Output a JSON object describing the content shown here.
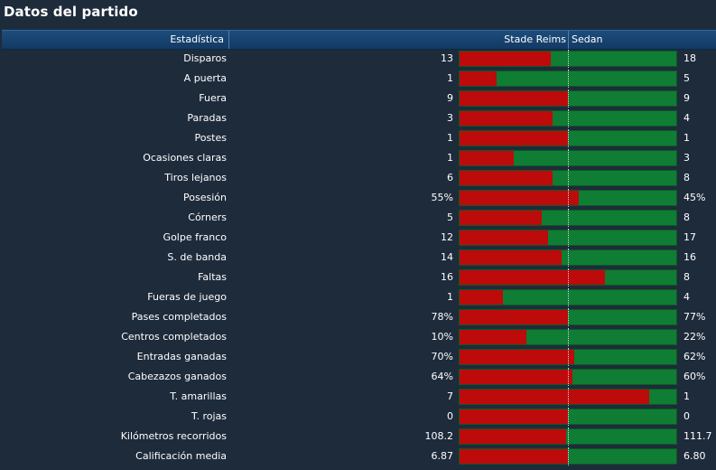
{
  "title": "Datos del partido",
  "header": {
    "stat_label": "Estadística",
    "home_team": "Stade Reims",
    "away_team": "Sedan"
  },
  "colors": {
    "home": "#bd0a0a",
    "away": "#0f7d33",
    "background": "#1e2b3b",
    "header": "#1d4c7c"
  },
  "rows": [
    {
      "label": "Disparos",
      "home": "13",
      "away": "18",
      "home_share": 0.42
    },
    {
      "label": "A puerta",
      "home": "1",
      "away": "5",
      "home_share": 0.17
    },
    {
      "label": "Fuera",
      "home": "9",
      "away": "9",
      "home_share": 0.5
    },
    {
      "label": "Paradas",
      "home": "3",
      "away": "4",
      "home_share": 0.43
    },
    {
      "label": "Postes",
      "home": "1",
      "away": "1",
      "home_share": 0.5
    },
    {
      "label": "Ocasiones claras",
      "home": "1",
      "away": "3",
      "home_share": 0.25
    },
    {
      "label": "Tiros lejanos",
      "home": "6",
      "away": "8",
      "home_share": 0.43
    },
    {
      "label": "Posesión",
      "home": "55%",
      "away": "45%",
      "home_share": 0.55
    },
    {
      "label": "Córners",
      "home": "5",
      "away": "8",
      "home_share": 0.38
    },
    {
      "label": "Golpe franco",
      "home": "12",
      "away": "17",
      "home_share": 0.41
    },
    {
      "label": "S. de banda",
      "home": "14",
      "away": "16",
      "home_share": 0.47
    },
    {
      "label": "Faltas",
      "home": "16",
      "away": "8",
      "home_share": 0.67
    },
    {
      "label": "Fueras de juego",
      "home": "1",
      "away": "4",
      "home_share": 0.2
    },
    {
      "label": "Pases completados",
      "home": "78%",
      "away": "77%",
      "home_share": 0.5
    },
    {
      "label": "Centros completados",
      "home": "10%",
      "away": "22%",
      "home_share": 0.31
    },
    {
      "label": "Entradas ganadas",
      "home": "70%",
      "away": "62%",
      "home_share": 0.53
    },
    {
      "label": "Cabezazos ganados",
      "home": "64%",
      "away": "60%",
      "home_share": 0.52
    },
    {
      "label": "T. amarillas",
      "home": "7",
      "away": "1",
      "home_share": 0.875
    },
    {
      "label": "T. rojas",
      "home": "0",
      "away": "0",
      "home_share": 0.5
    },
    {
      "label": "Kilómetros recorridos",
      "home": "108.2",
      "away": "111.7",
      "home_share": 0.49
    },
    {
      "label": "Calificación media",
      "home": "6.87",
      "away": "6.80",
      "home_share": 0.5
    }
  ]
}
